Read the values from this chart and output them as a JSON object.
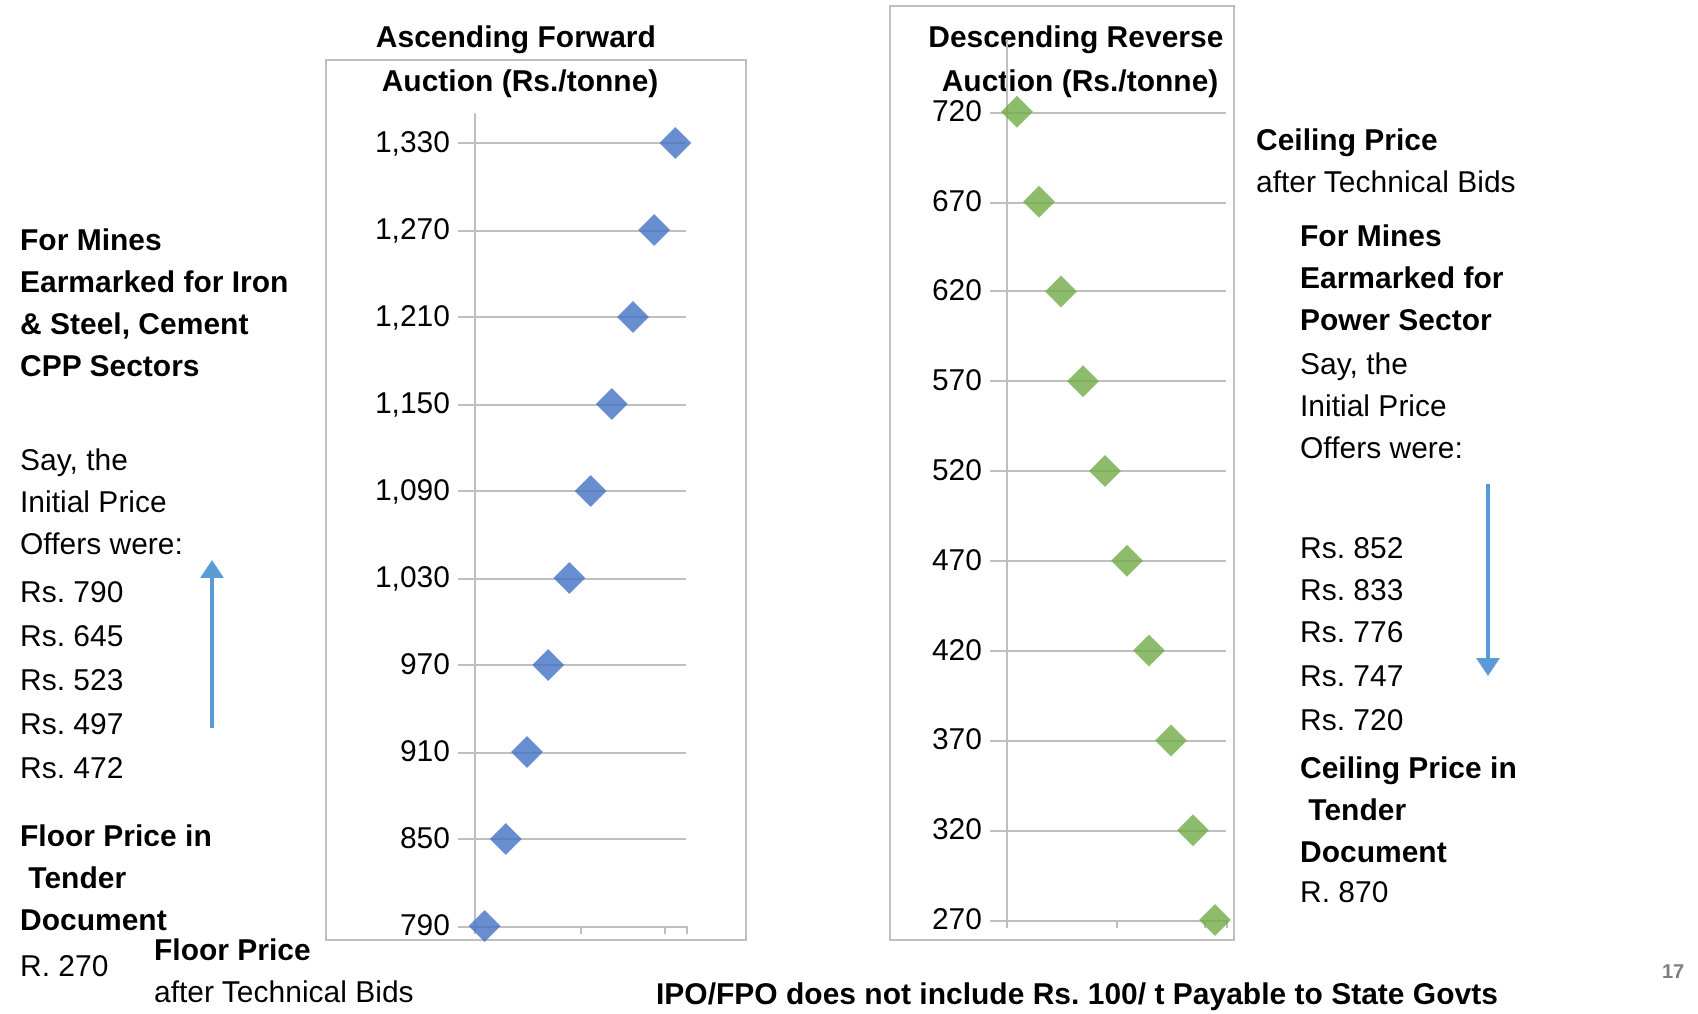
{
  "chart_data": [
    {
      "type": "scatter",
      "title": "Ascending Forward Auction (Rs./tonne)",
      "categories": [
        null,
        null,
        null,
        null,
        null,
        null,
        null,
        null,
        null,
        null
      ],
      "values": [
        790,
        850,
        910,
        970,
        1030,
        1090,
        1150,
        1210,
        1270,
        1330
      ],
      "color": "#4472c4",
      "marker": "diamond",
      "grid": "y",
      "ylim": [
        790,
        1350
      ],
      "yticks": [
        790,
        850,
        910,
        970,
        {
          "value": 1030,
          "label": "1,030"
        },
        {
          "value": 1090,
          "label": "1,090"
        },
        {
          "value": 1150,
          "label": "1,150"
        },
        {
          "value": 1210,
          "label": "1,210"
        },
        {
          "value": 1270,
          "label": "1,270"
        },
        {
          "value": 1330,
          "label": "1,330"
        }
      ],
      "tick_labels": "y",
      "annotations": [
        "For Mines Earmarked for Iron & Steel, Cement CPP Sectors",
        "Say, the Initial Price Offers were:",
        "Rs. 790",
        "Rs. 645",
        "Rs. 523",
        "Rs. 497",
        "Rs. 472",
        "Floor Price in Tender Document",
        "R. 270",
        "Floor Price",
        "after Technical Bids"
      ]
    },
    {
      "type": "scatter",
      "title": "Descending Reverse Auction (Rs./tonne)",
      "categories": [
        null,
        null,
        null,
        null,
        null,
        null,
        null,
        null,
        null,
        null
      ],
      "values": [
        720,
        670,
        620,
        570,
        520,
        470,
        420,
        370,
        320,
        270
      ],
      "color": "#70ad47",
      "marker": "diamond",
      "grid": "y",
      "ylim": [
        270,
        760
      ],
      "yticks": [
        270,
        320,
        370,
        420,
        470,
        520,
        570,
        620,
        670,
        720
      ],
      "tick_labels": "y",
      "annotations": [
        "Ceiling Price",
        "after Technical Bids",
        "For Mines Earmarked for Power Sector",
        "Say, the Initial Price Offers were:",
        "Rs. 852",
        "Rs. 833",
        "Rs. 776",
        "Rs. 747",
        "Rs. 720",
        "Ceiling Price in Tender Document",
        "R. 870",
        "IPO/FPO does not include Rs. 100/ t Payable to State Govts",
        "17"
      ]
    }
  ]
}
